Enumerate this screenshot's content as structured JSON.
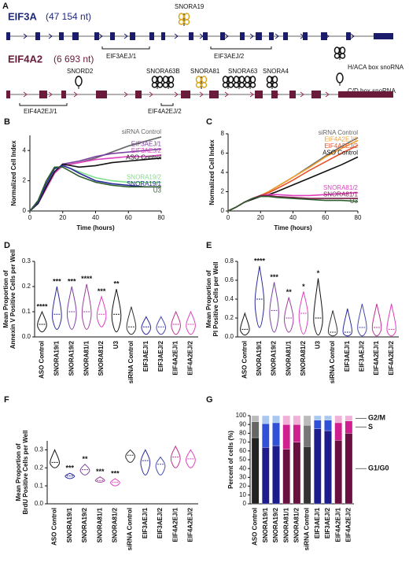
{
  "diagram": {
    "panel": "A",
    "gene1": {
      "name": "EIF3A",
      "length": "(47 154 nt)",
      "snornas": [
        "SNORA19"
      ],
      "junctions": [
        "EIF3AEJ/1",
        "EIF3AEJ/2"
      ]
    },
    "gene2": {
      "name": "EIF4A2",
      "length": "(6 693 nt)",
      "snornas": [
        "SNORD2",
        "SNORA63B",
        "SNORA81",
        "SNORA63",
        "SNORA4"
      ],
      "junctions": [
        "EIF4A2EJ/1",
        "EIF4A2EJ/2"
      ]
    },
    "legend": [
      "H/ACA box snoRNA",
      "C/D box snoRNA"
    ]
  },
  "chart_data": [
    {
      "panel": "B",
      "type": "line",
      "xlabel": "Time (hours)",
      "ylabel": "Normalized Cell Index",
      "x": [
        0,
        5,
        10,
        15,
        20,
        25,
        30,
        40,
        50,
        60,
        70,
        80
      ],
      "xlim": [
        0,
        80
      ],
      "xticks": [
        0,
        20,
        40,
        60,
        80
      ],
      "ylim": [
        0,
        5
      ],
      "yticks": [
        0,
        2,
        4
      ],
      "series": [
        {
          "name": "siRNA Control",
          "color": "#666666",
          "values": [
            0,
            0.5,
            1.5,
            2.5,
            3,
            3.1,
            3.2,
            3.5,
            3.9,
            4.3,
            4.6,
            4.9
          ]
        },
        {
          "name": "EIF3AEJ/1",
          "color": "#7b3fa0",
          "values": [
            0,
            0.5,
            1.5,
            2.5,
            3.1,
            3.2,
            3.3,
            3.6,
            3.8,
            3.9,
            4,
            4.1
          ]
        },
        {
          "name": "EIF3AEJ/2",
          "color": "#e040c0",
          "values": [
            0,
            0.5,
            1.5,
            2.5,
            3,
            3.1,
            3.2,
            3.4,
            3.5,
            3.6,
            3.6,
            3.7
          ]
        },
        {
          "name": "ASO Control",
          "color": "#111111",
          "values": [
            0,
            0.5,
            1.6,
            2.6,
            3.1,
            3,
            2.9,
            3,
            3.2,
            3.3,
            3.4,
            3.5
          ]
        },
        {
          "name": "SNORA19/2",
          "color": "#7ee08a",
          "values": [
            0,
            0.6,
            1.8,
            2.8,
            3,
            2.8,
            2.6,
            2.2,
            2,
            1.9,
            1.9,
            1.9
          ]
        },
        {
          "name": "SNORA19/1",
          "color": "#2b2a9a",
          "values": [
            0,
            0.6,
            1.8,
            2.8,
            3,
            2.8,
            2.5,
            2,
            1.8,
            1.7,
            1.6,
            1.6
          ]
        },
        {
          "name": "U3",
          "color": "#2e5e2e",
          "values": [
            0,
            0.7,
            2,
            2.9,
            2.9,
            2.6,
            2.3,
            1.9,
            1.7,
            1.6,
            1.6,
            1.6
          ]
        }
      ]
    },
    {
      "panel": "C",
      "type": "line",
      "xlabel": "Time (hours)",
      "ylabel": "Normalized Cell Index",
      "x": [
        0,
        5,
        10,
        15,
        20,
        25,
        30,
        40,
        50,
        60,
        70,
        80
      ],
      "xlim": [
        0,
        80
      ],
      "xticks": [
        0,
        20,
        40,
        60,
        80
      ],
      "ylim": [
        0,
        8
      ],
      "yticks": [
        0,
        2,
        4,
        6,
        8
      ],
      "series": [
        {
          "name": "siRNA Control",
          "color": "#666666",
          "values": [
            0,
            0.4,
            0.9,
            1.3,
            1.6,
            2,
            2.5,
            3.5,
            4.6,
            5.7,
            6.7,
            7.6
          ]
        },
        {
          "name": "EIF4A2EJ/1",
          "color": "#f0a030",
          "values": [
            0,
            0.4,
            0.9,
            1.3,
            1.6,
            2,
            2.5,
            3.5,
            4.5,
            5.6,
            6.5,
            7.3
          ]
        },
        {
          "name": "EIF4A2EJ/2",
          "color": "#e8502a",
          "values": [
            0,
            0.4,
            0.9,
            1.3,
            1.6,
            1.9,
            2.3,
            3.2,
            4.2,
            5.1,
            6,
            6.8
          ]
        },
        {
          "name": "ASO Control",
          "color": "#111111",
          "values": [
            0,
            0.4,
            0.9,
            1.2,
            1.5,
            1.7,
            2,
            2.7,
            3.4,
            4.1,
            4.8,
            5.6
          ]
        },
        {
          "name": "SNORA81/2",
          "color": "#e040c0",
          "values": [
            0,
            0.4,
            0.9,
            1.3,
            1.6,
            1.7,
            1.7,
            1.6,
            1.6,
            1.7,
            1.8,
            1.9
          ]
        },
        {
          "name": "SNORA81/1",
          "color": "#7a1f4a",
          "values": [
            0,
            0.4,
            0.9,
            1.3,
            1.6,
            1.6,
            1.5,
            1.4,
            1.3,
            1.3,
            1.3,
            1.3
          ]
        },
        {
          "name": "U3",
          "color": "#2e5e2e",
          "values": [
            0,
            0.4,
            0.9,
            1.3,
            1.5,
            1.5,
            1.4,
            1.3,
            1.2,
            1.1,
            1.1,
            1
          ]
        }
      ]
    },
    {
      "panel": "D",
      "type": "violin",
      "ylabel": [
        "Mean Proportion of",
        "Annexin V Positive Cells per Well"
      ],
      "ylim": [
        0,
        0.3
      ],
      "yticks": [
        {
          "value": 0,
          "label": "0.0"
        },
        0.1,
        0.2,
        0.3
      ],
      "categories": [
        "ASO Control",
        "SNORA19/1",
        "SNORA19/2",
        "SNORA81/1",
        "SNORA81/2",
        "U3",
        "siRNA Control",
        "EIF3AEJ/1",
        "EIF3AEJ/2",
        "EIF4A2EJ/1",
        "EIF4A2EJ/2"
      ],
      "colors": [
        "#111111",
        "#2b2a9a",
        "#7b3fa0",
        "#9b3f9a",
        "#e040c0",
        "#111111",
        "#333333",
        "#2b2a9a",
        "#4a4ab0",
        "#c03090",
        "#e040c0"
      ],
      "min": [
        0.02,
        0.03,
        0.03,
        0.03,
        0.04,
        0.02,
        0.01,
        0.01,
        0.01,
        0.01,
        0.01
      ],
      "median": [
        0.05,
        0.09,
        0.1,
        0.1,
        0.09,
        0.09,
        0.04,
        0.04,
        0.04,
        0.05,
        0.05
      ],
      "max": [
        0.1,
        0.2,
        0.2,
        0.21,
        0.16,
        0.19,
        0.12,
        0.08,
        0.08,
        0.1,
        0.1
      ],
      "annotations": [
        "****",
        "***",
        "***",
        "****",
        "***",
        "**",
        null,
        null,
        null,
        null,
        null
      ]
    },
    {
      "panel": "E",
      "type": "violin",
      "ylabel": [
        "Mean Proportion of",
        "PI Positive Cells per Well"
      ],
      "ylim": [
        0,
        0.8
      ],
      "yticks": [
        {
          "value": 0,
          "label": "0.0"
        },
        0.2,
        0.4,
        0.6,
        0.8
      ],
      "categories": [
        "ASO Control",
        "SNORA19/1",
        "SNORA19/2",
        "SNORA81/1",
        "SNORA81/2",
        "U3",
        "siRNA Control",
        "EIF3AEJ/1",
        "EIF3AEJ/2",
        "EIF4A2EJ/1",
        "EIF4A2EJ/2"
      ],
      "colors": [
        "#111111",
        "#2b2a9a",
        "#7b3fa0",
        "#9b3f9a",
        "#e040c0",
        "#111111",
        "#333333",
        "#2b2a9a",
        "#4a4ab0",
        "#c03090",
        "#e040c0"
      ],
      "min": [
        0.02,
        0.1,
        0.05,
        0.05,
        0.03,
        0.02,
        0.01,
        0.01,
        0.01,
        0.01,
        0.01
      ],
      "median": [
        0.08,
        0.4,
        0.28,
        0.2,
        0.25,
        0.2,
        0.05,
        0.05,
        0.1,
        0.1,
        0.08
      ],
      "max": [
        0.25,
        0.75,
        0.58,
        0.42,
        0.48,
        0.62,
        0.28,
        0.3,
        0.35,
        0.35,
        0.35
      ],
      "annotations": [
        null,
        "****",
        "***",
        "**",
        "*",
        "*",
        null,
        null,
        null,
        null,
        null
      ]
    },
    {
      "panel": "F",
      "type": "violin",
      "ylabel": [
        "Mean Proportion of",
        "BrdU Positive Cells per Well"
      ],
      "ylim": [
        0,
        0.35
      ],
      "yticks": [
        {
          "value": 0,
          "label": "0.0"
        },
        0.1,
        0.2,
        0.3
      ],
      "categories": [
        "ASO Control",
        "SNORA19/1",
        "SNORA19/2",
        "SNORA81/1",
        "SNORA81/2",
        "siRNA Control",
        "EIF3AEJ/1",
        "EIF3AEJ/2",
        "EIF4A2EJ/1",
        "EIF4A2EJ/2"
      ],
      "colors": [
        "#111111",
        "#2b2a9a",
        "#7b3fa0",
        "#9b3f9a",
        "#e040c0",
        "#333333",
        "#2b2a9a",
        "#4a4ab0",
        "#c03090",
        "#e040c0"
      ],
      "min": [
        0.2,
        0.14,
        0.16,
        0.12,
        0.1,
        0.23,
        0.16,
        0.16,
        0.2,
        0.2
      ],
      "median": [
        0.23,
        0.155,
        0.19,
        0.13,
        0.12,
        0.27,
        0.24,
        0.22,
        0.26,
        0.25
      ],
      "max": [
        0.3,
        0.17,
        0.22,
        0.15,
        0.14,
        0.3,
        0.3,
        0.26,
        0.32,
        0.3
      ],
      "annotations": [
        null,
        "***",
        "**",
        "***",
        "***",
        null,
        null,
        null,
        null,
        null
      ]
    },
    {
      "panel": "G",
      "type": "stacked-bar",
      "ylabel": "Percent of cells (%)",
      "ylim": [
        0,
        100
      ],
      "yticks": [
        0,
        10,
        20,
        30,
        40,
        50,
        60,
        70,
        80,
        90,
        100
      ],
      "categories": [
        "ASO Control",
        "SNORA19/1",
        "SNORA19/2",
        "SNORA81/1",
        "SNORA81/2",
        "siRNA Control",
        "EIF3AEJ/1",
        "EIF3AEJ/2",
        "EIF4A2EJ/1",
        "EIF4A2EJ/2"
      ],
      "series": [
        {
          "name": "G1/G0",
          "colors": [
            "#222222",
            "#1c1c8c",
            "#1c1c8c",
            "#6a1040",
            "#6a1040",
            "#333333",
            "#1c1c8c",
            "#1c1c8c",
            "#6a1040",
            "#6a1040"
          ],
          "values": [
            75,
            64,
            66,
            62,
            70,
            65,
            85,
            83,
            72,
            80
          ]
        },
        {
          "name": "S",
          "colors": [
            "#666666",
            "#3050d8",
            "#3050d8",
            "#d02090",
            "#d02090",
            "#777777",
            "#3050d8",
            "#3050d8",
            "#d02090",
            "#d02090"
          ],
          "values": [
            18,
            27,
            26,
            28,
            20,
            24,
            10,
            12,
            20,
            14
          ]
        },
        {
          "name": "G2/M",
          "colors": [
            "#bbbbbb",
            "#a8c8f0",
            "#a8c8f0",
            "#f0b0d8",
            "#f0b0d8",
            "#bbbbbb",
            "#a8c8f0",
            "#a8c8f0",
            "#f0b0d8",
            "#f0b0d8"
          ],
          "values": [
            7,
            9,
            8,
            10,
            10,
            11,
            5,
            5,
            8,
            6
          ]
        }
      ]
    }
  ]
}
